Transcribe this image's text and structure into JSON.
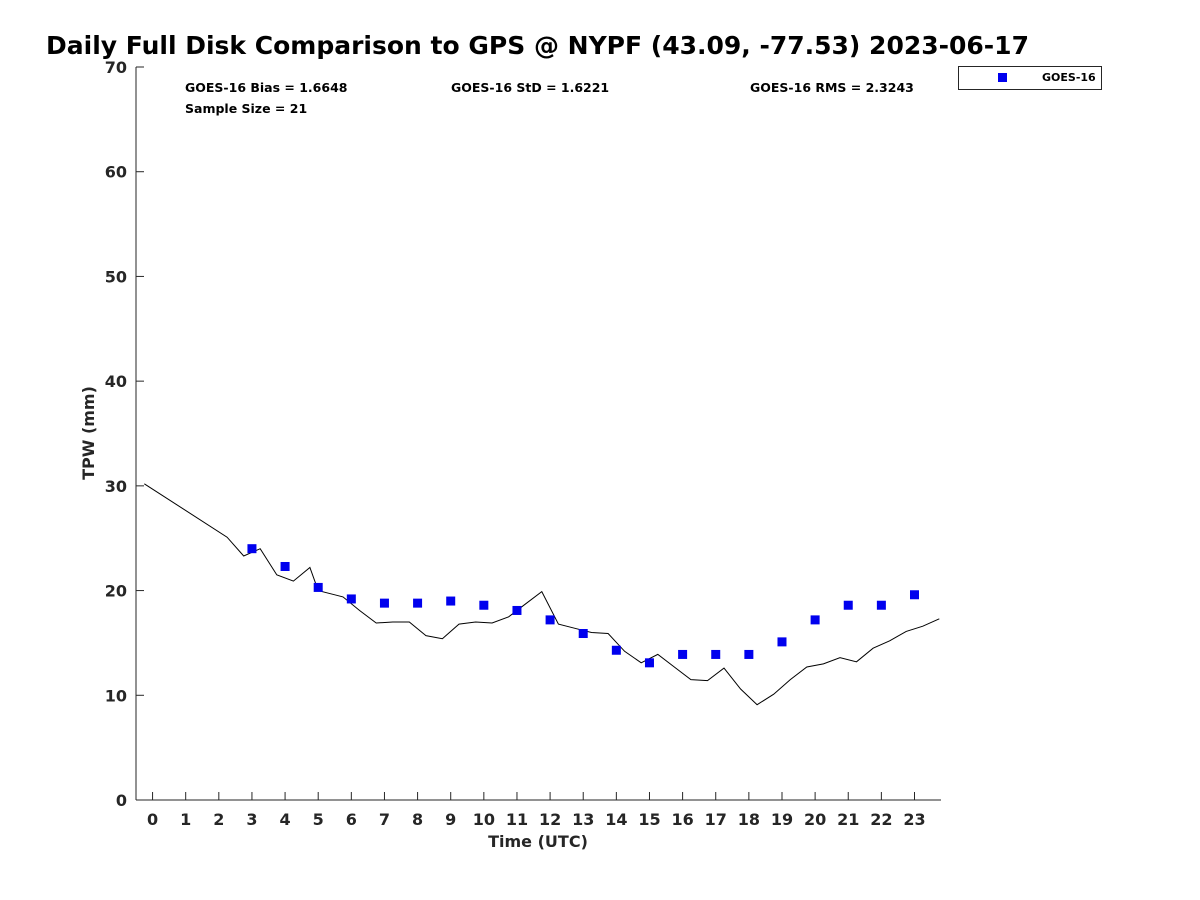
{
  "chart_data": {
    "type": "scatter",
    "title": "Daily Full Disk Comparison to GPS @ NYPF (43.09, -77.53) 2023-06-17",
    "xlabel": "Time (UTC)",
    "ylabel": "TPW (mm)",
    "xlim": [
      -0.5,
      23.8
    ],
    "ylim": [
      0,
      70
    ],
    "x_ticks": [
      "0",
      "1",
      "2",
      "3",
      "4",
      "5",
      "6",
      "7",
      "8",
      "9",
      "10",
      "11",
      "12",
      "13",
      "14",
      "15",
      "16",
      "17",
      "18",
      "19",
      "20",
      "21",
      "22",
      "23"
    ],
    "y_ticks": [
      "0",
      "10",
      "20",
      "30",
      "40",
      "50",
      "60",
      "70"
    ],
    "stats": {
      "bias": "GOES-16 Bias = 1.6648",
      "std": "GOES-16 StD = 1.6221",
      "rms": "GOES-16 RMS = 2.3243",
      "sample": "Sample Size = 21"
    },
    "legend": {
      "placement": "top-right-outside",
      "entries": [
        "GOES-16"
      ]
    },
    "series": [
      {
        "name": "GOES-16",
        "kind": "scatter",
        "marker": "square",
        "color": "#0000ee",
        "x": [
          3,
          4,
          5,
          6,
          7,
          8,
          9,
          10,
          11,
          12,
          13,
          14,
          15,
          16,
          17,
          18,
          19,
          20,
          21,
          22,
          23
        ],
        "y": [
          24.0,
          22.3,
          20.3,
          19.2,
          18.8,
          18.8,
          19.0,
          18.6,
          18.1,
          17.2,
          15.9,
          14.3,
          13.1,
          13.9,
          13.9,
          13.9,
          15.1,
          17.2,
          18.6,
          18.6,
          19.6
        ]
      },
      {
        "kind": "line",
        "color": "#000000",
        "x": [
          -0.25,
          2.25,
          2.75,
          3.25,
          3.75,
          4.25,
          4.75,
          5.0,
          5.5,
          5.75,
          6.25,
          6.75,
          7.25,
          7.75,
          8.25,
          8.75,
          9.25,
          9.75,
          10.25,
          10.75,
          11.25,
          11.75,
          12.25,
          12.75,
          13.25,
          13.75,
          14.25,
          14.75,
          15.25,
          15.75,
          16.25,
          16.75,
          17.25,
          17.75,
          18.25,
          18.75,
          19.25,
          19.75,
          20.25,
          20.75,
          21.25,
          21.75,
          22.25,
          22.75,
          23.25,
          23.75
        ],
        "y": [
          30.2,
          25.1,
          23.3,
          24.0,
          21.5,
          20.9,
          22.2,
          20.0,
          19.6,
          19.4,
          18.1,
          16.9,
          17.0,
          17.0,
          15.7,
          15.4,
          16.8,
          17.0,
          16.9,
          17.5,
          18.7,
          19.9,
          16.8,
          16.4,
          16.0,
          15.9,
          14.2,
          13.1,
          13.9,
          12.7,
          11.5,
          11.4,
          12.6,
          10.6,
          9.1,
          10.1,
          11.5,
          12.7,
          13.0,
          13.6,
          13.2,
          14.5,
          15.2,
          16.1,
          16.6,
          17.3
        ]
      }
    ]
  }
}
